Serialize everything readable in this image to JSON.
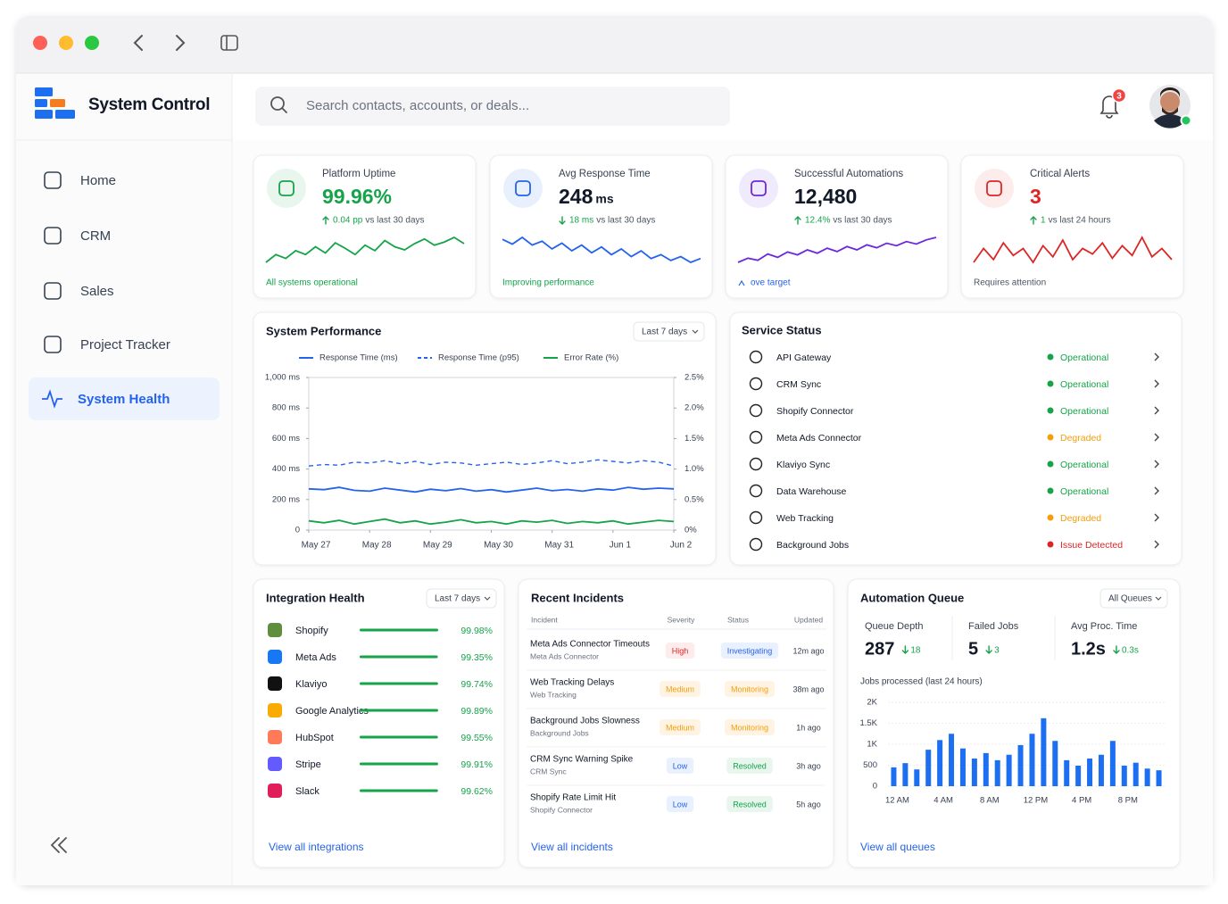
{
  "sidebar": {
    "brand": "System Control",
    "nav": [
      "Home",
      "CRM",
      "Sales",
      "Project Tracker",
      "System Health"
    ],
    "active": 4
  },
  "search": {
    "placeholder": "Search contacts, accounts, or deals..."
  },
  "notifications": {
    "count": "3"
  },
  "kpis": [
    {
      "title": "Platform Uptime",
      "value": "99.96%",
      "delta": "0.04 pp",
      "note": "vs last 30 days",
      "direction": "up",
      "footer": "All systems operational",
      "color": "#16a34a",
      "tint": "#e8f6ee",
      "value_color": "#16a34a",
      "footer_color": "#16a34a",
      "spark": [
        5,
        6,
        5.5,
        6.5,
        6,
        7,
        6.2,
        7.5,
        6.8,
        6,
        7.2,
        6.5,
        7.8,
        7,
        6.6,
        7.4,
        8,
        7.2,
        7.6,
        8.2,
        7.4
      ]
    },
    {
      "title": "Avg Response Time",
      "value": "248",
      "unit": "ms",
      "delta": "18 ms",
      "note": "vs last 30 days",
      "direction": "down",
      "footer": "Improving performance",
      "color": "#2563eb",
      "tint": "#e9f0fd",
      "value_color": "#111827",
      "footer_color": "#16a34a",
      "spark": [
        7,
        6.5,
        7.2,
        6.4,
        6.8,
        6,
        6.6,
        5.8,
        6.4,
        5.6,
        6.2,
        5.4,
        6,
        5.2,
        5.8,
        5,
        5.4,
        4.8,
        5.2,
        4.6,
        5
      ]
    },
    {
      "title": "Successful Automations",
      "value": "12,480",
      "delta": "12.4%",
      "note": "vs last 30 days",
      "direction": "up",
      "footer": "ove target",
      "color": "#6d28d9",
      "tint": "#f0eafd",
      "value_color": "#111827",
      "footer_color": "#2563eb",
      "spark": [
        3,
        4,
        3.5,
        5,
        4.2,
        5.5,
        4.8,
        6,
        5.2,
        6.4,
        5.6,
        6.8,
        6,
        7.2,
        6.5,
        7.6,
        7,
        8,
        7.4,
        8.4,
        9
      ]
    },
    {
      "title": "Critical Alerts",
      "value": "3",
      "delta": "1",
      "note": "vs last 24 hours",
      "direction": "up",
      "footer": "Requires attention",
      "color": "#dc2626",
      "tint": "#fdecec",
      "value_color": "#dc2626",
      "footer_color": "#4b5563",
      "spark": [
        6,
        7,
        6.2,
        7.4,
        6.5,
        7,
        6,
        7.2,
        6.4,
        7.6,
        6.2,
        7,
        6.6,
        7.4,
        6.3,
        7.2,
        6.5,
        7.8,
        6.4,
        7,
        6.2
      ]
    }
  ],
  "performance": {
    "type": "line",
    "title": "System Performance",
    "range": "Last 7 days",
    "x": [
      0,
      0.25,
      0.5,
      0.75,
      1,
      1.25,
      1.5,
      1.75,
      2,
      2.25,
      2.5,
      2.75,
      3,
      3.25,
      3.5,
      3.75,
      4,
      4.25,
      4.5,
      4.75,
      5,
      5.25,
      5.5,
      5.75,
      6
    ],
    "xlim": [
      0,
      6
    ],
    "xticks": [
      {
        "value": 0,
        "label": "May 27"
      },
      {
        "value": 1,
        "label": "May 28"
      },
      {
        "value": 2,
        "label": "May 29"
      },
      {
        "value": 3,
        "label": "May 30"
      },
      {
        "value": 4,
        "label": "May 31"
      },
      {
        "value": 5,
        "label": "Jun 1"
      },
      {
        "value": 6,
        "label": "Jun 2"
      }
    ],
    "ylim": [
      0,
      1000
    ],
    "yticks": [
      0,
      {
        "value": 200,
        "label": "200 ms"
      },
      {
        "value": 400,
        "label": "400 ms"
      },
      {
        "value": 600,
        "label": "600 ms"
      },
      {
        "value": 800,
        "label": "800 ms"
      },
      {
        "value": 1000,
        "label": "1,000 ms"
      }
    ],
    "y2lim": [
      0,
      2.5
    ],
    "y2ticks": [
      {
        "value": 0,
        "label": "0%"
      },
      {
        "value": 0.5,
        "label": "0.5%"
      },
      {
        "value": 1,
        "label": "1.0%"
      },
      {
        "value": 1.5,
        "label": "1.5%"
      },
      {
        "value": 2,
        "label": "2.0%"
      },
      {
        "value": 2.5,
        "label": "2.5%"
      }
    ],
    "series": [
      {
        "name": "Response Time (ms)",
        "color": "#2563eb",
        "dashed": false,
        "values": [
          270,
          265,
          280,
          260,
          255,
          275,
          262,
          250,
          268,
          258,
          272,
          255,
          265,
          250,
          262,
          275,
          258,
          266,
          255,
          270,
          262,
          280,
          268,
          275,
          270
        ]
      },
      {
        "name": "Response Time (p95)",
        "color": "#2563eb",
        "dashed": true,
        "values": [
          420,
          430,
          425,
          445,
          440,
          455,
          435,
          450,
          430,
          445,
          440,
          425,
          435,
          445,
          430,
          440,
          455,
          435,
          445,
          460,
          450,
          440,
          455,
          445,
          420
        ]
      },
      {
        "name": "Error Rate (%)",
        "color": "#16a34a",
        "dashed": false,
        "axis": "y2",
        "values": [
          0.15,
          0.12,
          0.16,
          0.1,
          0.14,
          0.18,
          0.12,
          0.15,
          0.1,
          0.13,
          0.17,
          0.12,
          0.14,
          0.1,
          0.15,
          0.13,
          0.16,
          0.11,
          0.14,
          0.12,
          0.15,
          0.1,
          0.13,
          0.16,
          0.14
        ]
      }
    ]
  },
  "services": {
    "title": "Service Status",
    "items": [
      {
        "name": "API Gateway",
        "status": "Operational",
        "tone": "green"
      },
      {
        "name": "CRM Sync",
        "status": "Operational",
        "tone": "green"
      },
      {
        "name": "Shopify Connector",
        "status": "Operational",
        "tone": "green"
      },
      {
        "name": "Meta Ads Connector",
        "status": "Degraded",
        "tone": "orange"
      },
      {
        "name": "Klaviyo Sync",
        "status": "Operational",
        "tone": "green"
      },
      {
        "name": "Data Warehouse",
        "status": "Operational",
        "tone": "green"
      },
      {
        "name": "Web Tracking",
        "status": "Degraded",
        "tone": "orange"
      },
      {
        "name": "Background Jobs",
        "status": "Issue Detected",
        "tone": "red"
      }
    ]
  },
  "integrations": {
    "title": "Integration Health",
    "range": "Last 7 days",
    "xlim": [
      0,
      100
    ],
    "bar_color": "#16a34a",
    "link": "View all integrations",
    "items": [
      {
        "name": "Shopify",
        "value": 99.98,
        "value_label": "99.98%",
        "color": "#5e8e3e"
      },
      {
        "name": "Meta Ads",
        "value": 99.35,
        "value_label": "99.35%",
        "color": "#1877f2"
      },
      {
        "name": "Klaviyo",
        "value": 99.74,
        "value_label": "99.74%",
        "color": "#111111"
      },
      {
        "name": "Google Analytics",
        "value": 99.89,
        "value_label": "99.89%",
        "color": "#f9ab00"
      },
      {
        "name": "HubSpot",
        "value": 99.55,
        "value_label": "99.55%",
        "color": "#ff7a59"
      },
      {
        "name": "Stripe",
        "value": 99.91,
        "value_label": "99.91%",
        "color": "#635bff"
      },
      {
        "name": "Slack",
        "value": 99.62,
        "value_label": "99.62%",
        "color": "#e01e5a"
      }
    ]
  },
  "incidents": {
    "title": "Recent Incidents",
    "columns": [
      "Incident",
      "Severity",
      "Status",
      "Updated"
    ],
    "link": "View all incidents",
    "rows": [
      {
        "title": "Meta Ads Connector Timeouts",
        "source": "Meta Ads Connector",
        "severity": "High",
        "severity_tone": "red",
        "status": "Investigating",
        "status_tone": "blue",
        "updated": "12m ago"
      },
      {
        "title": "Web Tracking Delays",
        "source": "Web Tracking",
        "severity": "Medium",
        "severity_tone": "orange",
        "status": "Monitoring",
        "status_tone": "orange",
        "updated": "38m ago"
      },
      {
        "title": "Background Jobs Slowness",
        "source": "Background Jobs",
        "severity": "Medium",
        "severity_tone": "orange",
        "status": "Monitoring",
        "status_tone": "orange",
        "updated": "1h ago"
      },
      {
        "title": "CRM Sync Warning Spike",
        "source": "CRM Sync",
        "severity": "Low",
        "severity_tone": "blue",
        "status": "Resolved",
        "status_tone": "green",
        "updated": "3h ago"
      },
      {
        "title": "Shopify Rate Limit Hit",
        "source": "Shopify Connector",
        "severity": "Low",
        "severity_tone": "blue",
        "status": "Resolved",
        "status_tone": "green",
        "updated": "5h ago"
      }
    ]
  },
  "queue": {
    "title": "Automation Queue",
    "filter": "All Queues",
    "link": "View all queues",
    "stats": [
      {
        "label": "Queue Depth",
        "value": "287",
        "delta": "18",
        "direction": "down"
      },
      {
        "label": "Failed Jobs",
        "value": "5",
        "delta": "3",
        "direction": "down"
      },
      {
        "label": "Avg Proc. Time",
        "value": "1.2s",
        "delta": "0.3s",
        "direction": "down"
      }
    ],
    "chart": {
      "type": "bar",
      "title": "Jobs processed (last 24 hours)",
      "color": "#1d6ff2",
      "categories": [
        "12 AM",
        null,
        null,
        null,
        "4 AM",
        null,
        null,
        null,
        "8 AM",
        null,
        null,
        null,
        "12 PM",
        null,
        null,
        null,
        "4 PM",
        null,
        null,
        null,
        "8 PM",
        null,
        null,
        null
      ],
      "values": [
        450,
        550,
        400,
        870,
        1100,
        1250,
        900,
        660,
        790,
        620,
        750,
        980,
        1250,
        1620,
        1080,
        620,
        490,
        660,
        750,
        1080,
        490,
        560,
        420,
        380
      ],
      "ylim": [
        0,
        2000
      ],
      "yticks": [
        0,
        500,
        {
          "value": 1000,
          "label": "1K"
        },
        {
          "value": 1500,
          "label": "1.5K"
        },
        {
          "value": 2000,
          "label": "2K"
        }
      ],
      "grid": true
    }
  }
}
